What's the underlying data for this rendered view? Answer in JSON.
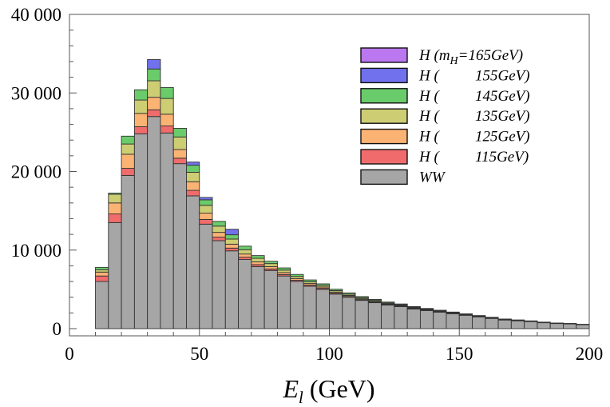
{
  "chart_data": {
    "type": "bar",
    "subtype": "stacked-histogram",
    "title": "",
    "xlabel": "E_l (GeV)",
    "xlabel_symbol": "E",
    "xlabel_subscript": "l",
    "xlabel_unit": "(GeV)",
    "ylabel": "",
    "xlim": [
      0,
      200
    ],
    "ylim": [
      0,
      40000
    ],
    "x_ticks": [
      0,
      50,
      100,
      150,
      200
    ],
    "x_tick_labels": [
      "0",
      "50",
      "100",
      "150",
      "200"
    ],
    "y_ticks": [
      0,
      10000,
      20000,
      30000,
      40000
    ],
    "y_tick_labels": [
      "0",
      "10 000",
      "20 000",
      "30 000",
      "40 000"
    ],
    "bin_width": 5,
    "bin_low_edges": [
      10,
      15,
      20,
      25,
      30,
      35,
      40,
      45,
      50,
      55,
      60,
      65,
      70,
      75,
      80,
      85,
      90,
      95,
      100,
      105,
      110,
      115,
      120,
      125,
      130,
      135,
      140,
      145,
      150,
      155,
      160,
      165,
      170,
      175,
      180,
      185,
      190,
      195
    ],
    "grid": false,
    "legend_position": "top-right",
    "series": [
      {
        "name": "WW",
        "color": "#a6a6a6",
        "values": [
          6000,
          13500,
          19500,
          24800,
          27000,
          24900,
          21000,
          16900,
          13300,
          11200,
          9900,
          8800,
          7900,
          7400,
          6700,
          6000,
          5400,
          5000,
          4400,
          4000,
          3600,
          3300,
          3000,
          2800,
          2500,
          2300,
          2100,
          1900,
          1700,
          1500,
          1300,
          1100,
          1000,
          900,
          750,
          650,
          600,
          500
        ]
      },
      {
        "name": "H (115GeV)",
        "color": "#f06c6c",
        "values": [
          700,
          1100,
          900,
          900,
          850,
          900,
          700,
          700,
          600,
          450,
          350,
          300,
          250,
          200,
          180,
          160,
          150,
          130,
          110,
          100,
          90,
          80,
          70,
          60,
          55,
          50,
          45,
          40,
          35,
          30,
          25,
          20,
          20,
          15,
          15,
          10,
          10,
          10
        ]
      },
      {
        "name": "H (125GeV)",
        "color": "#fbb374",
        "values": [
          500,
          1400,
          1800,
          1700,
          1600,
          1500,
          1100,
          1100,
          800,
          600,
          500,
          400,
          350,
          300,
          250,
          220,
          190,
          170,
          150,
          130,
          110,
          100,
          90,
          80,
          70,
          60,
          55,
          50,
          45,
          40,
          35,
          30,
          25,
          20,
          20,
          15,
          15,
          10
        ]
      },
      {
        "name": "H (135GeV)",
        "color": "#cdcd73",
        "values": [
          300,
          1100,
          1300,
          1700,
          2100,
          2000,
          1600,
          1200,
          1000,
          800,
          650,
          550,
          450,
          380,
          320,
          270,
          230,
          200,
          180,
          160,
          140,
          120,
          110,
          100,
          90,
          80,
          70,
          60,
          50,
          45,
          40,
          35,
          30,
          25,
          20,
          20,
          15,
          15
        ]
      },
      {
        "name": "H (145GeV)",
        "color": "#6acb6a",
        "values": [
          300,
          150,
          1000,
          1300,
          1500,
          1400,
          1100,
          900,
          700,
          600,
          550,
          450,
          350,
          300,
          280,
          250,
          230,
          200,
          180,
          160,
          140,
          120,
          110,
          100,
          90,
          80,
          70,
          60,
          55,
          50,
          45,
          40,
          35,
          30,
          25,
          20,
          20,
          15
        ]
      },
      {
        "name": "H (155GeV)",
        "color": "#7171ee",
        "values": [
          0,
          0,
          0,
          0,
          1200,
          0,
          0,
          400,
          300,
          0,
          700,
          0,
          0,
          0,
          0,
          0,
          0,
          0,
          0,
          0,
          0,
          0,
          0,
          0,
          0,
          0,
          0,
          0,
          0,
          0,
          0,
          0,
          0,
          0,
          0,
          0,
          0,
          0
        ]
      },
      {
        "name": "H (m_H=165GeV)",
        "color": "#bb77f0",
        "values": [
          0,
          0,
          0,
          0,
          0,
          0,
          0,
          0,
          0,
          0,
          0,
          0,
          0,
          0,
          0,
          0,
          0,
          0,
          0,
          0,
          0,
          0,
          0,
          0,
          0,
          0,
          0,
          0,
          0,
          0,
          0,
          0,
          0,
          0,
          0,
          0,
          0,
          0
        ]
      }
    ]
  },
  "legend": {
    "entries": [
      {
        "series": "H (m_H=165GeV)",
        "prefix": "H (",
        "mass_symbol": "m",
        "mass_subscript": "H",
        "suffix": "=165GeV)",
        "color": "#bb77f0"
      },
      {
        "series": "H (155GeV)",
        "prefix": "H (",
        "mass_symbol": "",
        "mass_subscript": "",
        "suffix": "155GeV)",
        "color": "#7171ee"
      },
      {
        "series": "H (145GeV)",
        "prefix": "H (",
        "mass_symbol": "",
        "mass_subscript": "",
        "suffix": "145GeV)",
        "color": "#6acb6a"
      },
      {
        "series": "H (135GeV)",
        "prefix": "H (",
        "mass_symbol": "",
        "mass_subscript": "",
        "suffix": "135GeV)",
        "color": "#cdcd73"
      },
      {
        "series": "H (125GeV)",
        "prefix": "H (",
        "mass_symbol": "",
        "mass_subscript": "",
        "suffix": "125GeV)",
        "color": "#fbb374"
      },
      {
        "series": "H (115GeV)",
        "prefix": "H (",
        "mass_symbol": "",
        "mass_subscript": "",
        "suffix": "115GeV)",
        "color": "#f06c6c"
      },
      {
        "series": "WW",
        "prefix": "WW",
        "mass_symbol": "",
        "mass_subscript": "",
        "suffix": "",
        "color": "#a6a6a6"
      }
    ]
  }
}
